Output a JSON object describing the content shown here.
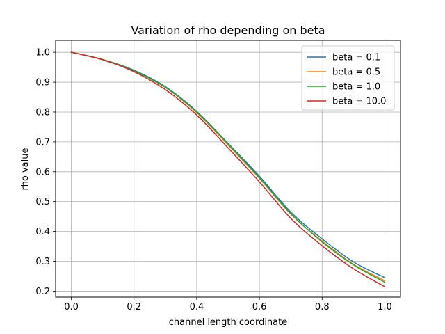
{
  "chart_data": {
    "type": "line",
    "title": "Variation of rho depending on beta",
    "xlabel": "channel length coordinate",
    "ylabel": "rho value",
    "xlim": [
      -0.05,
      1.05
    ],
    "ylim": [
      0.18,
      1.04
    ],
    "xticks": [
      0.0,
      0.2,
      0.4,
      0.6,
      0.8,
      1.0
    ],
    "xtick_labels": [
      "0.0",
      "0.2",
      "0.4",
      "0.6",
      "0.8",
      "1.0"
    ],
    "yticks": [
      0.2,
      0.3,
      0.4,
      0.5,
      0.6,
      0.7,
      0.8,
      0.9,
      1.0
    ],
    "ytick_labels": [
      "0.2",
      "0.3",
      "0.4",
      "0.5",
      "0.6",
      "0.7",
      "0.8",
      "0.9",
      "1.0"
    ],
    "grid": true,
    "legend_position": "top-right",
    "x": [
      0.0,
      0.1,
      0.2,
      0.3,
      0.4,
      0.5,
      0.6,
      0.7,
      0.8,
      0.9,
      1.0
    ],
    "series": [
      {
        "name": "beta = 0.1",
        "color": "#1f77b4",
        "values": [
          1.0,
          0.976,
          0.94,
          0.885,
          0.802,
          0.695,
          0.585,
          0.465,
          0.375,
          0.298,
          0.245
        ]
      },
      {
        "name": "beta = 0.5",
        "color": "#ff7f0e",
        "values": [
          1.0,
          0.976,
          0.938,
          0.882,
          0.798,
          0.69,
          0.578,
          0.458,
          0.368,
          0.29,
          0.235
        ]
      },
      {
        "name": "beta = 1.0",
        "color": "#2ca02c",
        "values": [
          1.0,
          0.976,
          0.938,
          0.883,
          0.8,
          0.693,
          0.58,
          0.46,
          0.365,
          0.288,
          0.23
        ]
      },
      {
        "name": "beta = 10.0",
        "color": "#d62728",
        "values": [
          1.0,
          0.975,
          0.935,
          0.875,
          0.79,
          0.68,
          0.566,
          0.444,
          0.352,
          0.275,
          0.215
        ]
      }
    ]
  }
}
